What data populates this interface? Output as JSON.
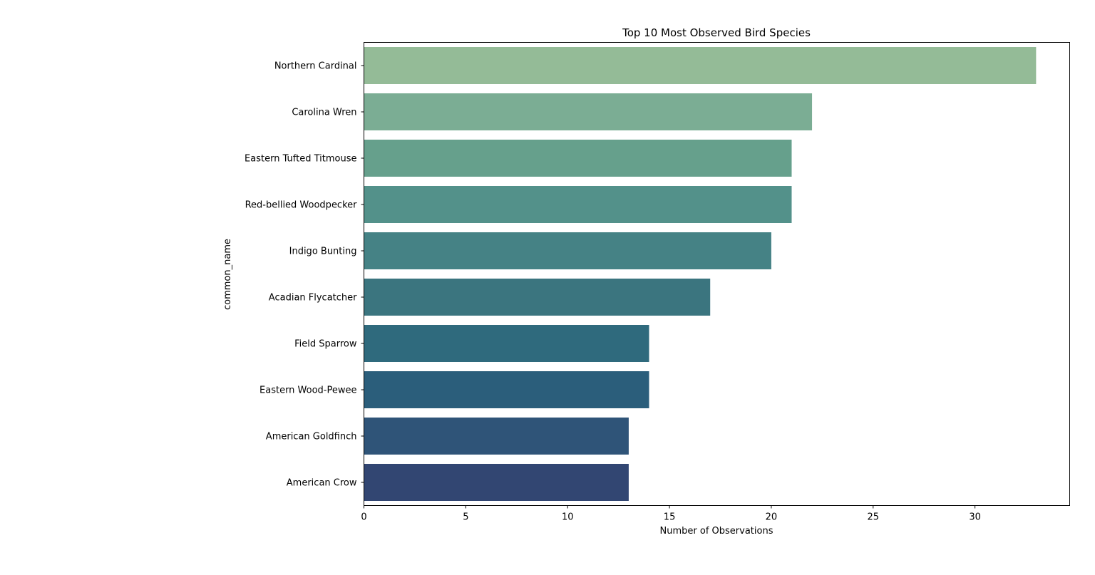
{
  "chart_data": {
    "type": "bar",
    "orientation": "horizontal",
    "title": "Top 10 Most Observed Bird Species",
    "xlabel": "Number of Observations",
    "ylabel": "common_name",
    "categories": [
      "Northern Cardinal",
      "Carolina Wren",
      "Eastern Tufted Titmouse",
      "Red-bellied Woodpecker",
      "Indigo Bunting",
      "Acadian Flycatcher",
      "Field Sparrow",
      "Eastern Wood-Pewee",
      "American Goldfinch",
      "American Crow"
    ],
    "values": [
      33,
      22,
      21,
      21,
      20,
      17,
      14,
      14,
      13,
      13
    ],
    "colors": [
      "#94bb97",
      "#7bad94",
      "#66a08c",
      "#53918a",
      "#458285",
      "#3b757f",
      "#2f6a7d",
      "#2b5e7b",
      "#2f5478",
      "#324672"
    ],
    "xlim": [
      0,
      34.65
    ],
    "xticks": [
      0,
      5,
      10,
      15,
      20,
      25,
      30
    ],
    "grid": false,
    "legend": "none"
  }
}
